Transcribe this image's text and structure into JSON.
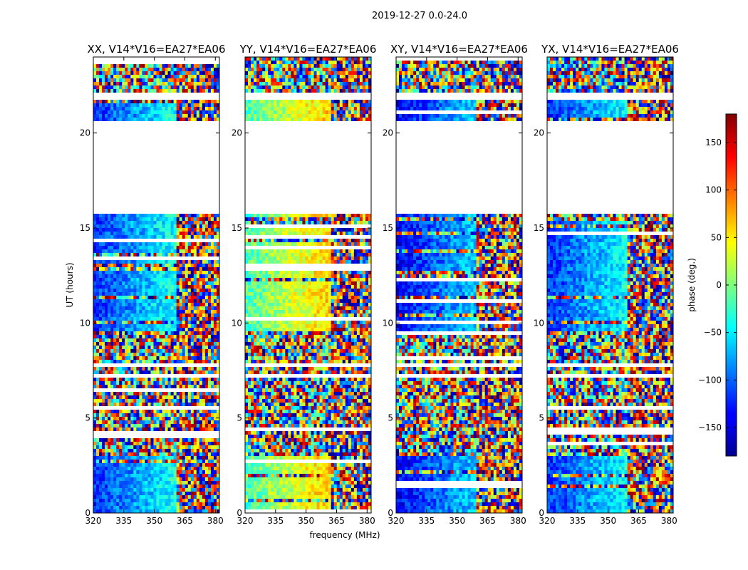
{
  "chart_data": {
    "type": "heatmap",
    "suptitle": "2019-12-27 0.0-24.0",
    "xlabel": "frequency (MHz)",
    "ylabel": "UT (hours)",
    "xlim": [
      320,
      382
    ],
    "ylim": [
      0,
      24
    ],
    "xticks": [
      320,
      335,
      350,
      365,
      380
    ],
    "yticks": [
      0,
      5,
      10,
      15,
      20
    ],
    "colorbar": {
      "label": "phase (deg.)",
      "range": [
        -180,
        180
      ],
      "ticks": [
        150,
        100,
        50,
        0,
        -50,
        -100,
        -150
      ],
      "tick_labels": [
        "150",
        "100",
        "50",
        "0",
        "−50",
        "−100",
        "−150"
      ],
      "colormap": "jet"
    },
    "panels": [
      {
        "title": "XX, V14*V16=EA27*EA06",
        "base_phase": -120,
        "high_band_phase": 150,
        "band_edge_mhz": 361
      },
      {
        "title": "YY, V14*V16=EA27*EA06",
        "base_phase": -20,
        "high_band_phase": 160,
        "band_edge_mhz": 362
      },
      {
        "title": "XY, V14*V16=EA27*EA06",
        "base_phase": -140,
        "high_band_phase": 140,
        "band_edge_mhz": 360
      },
      {
        "title": "YX, V14*V16=EA27*EA06",
        "base_phase": -120,
        "high_band_phase": 150,
        "band_edge_mhz": 360
      }
    ],
    "data_gaps_hours": [
      [
        20.4,
        20.7
      ],
      [
        15.7,
        20.4
      ],
      [
        7.6,
        7.8
      ],
      [
        7.2,
        7.4
      ],
      [
        21.8,
        22.2
      ]
    ]
  }
}
